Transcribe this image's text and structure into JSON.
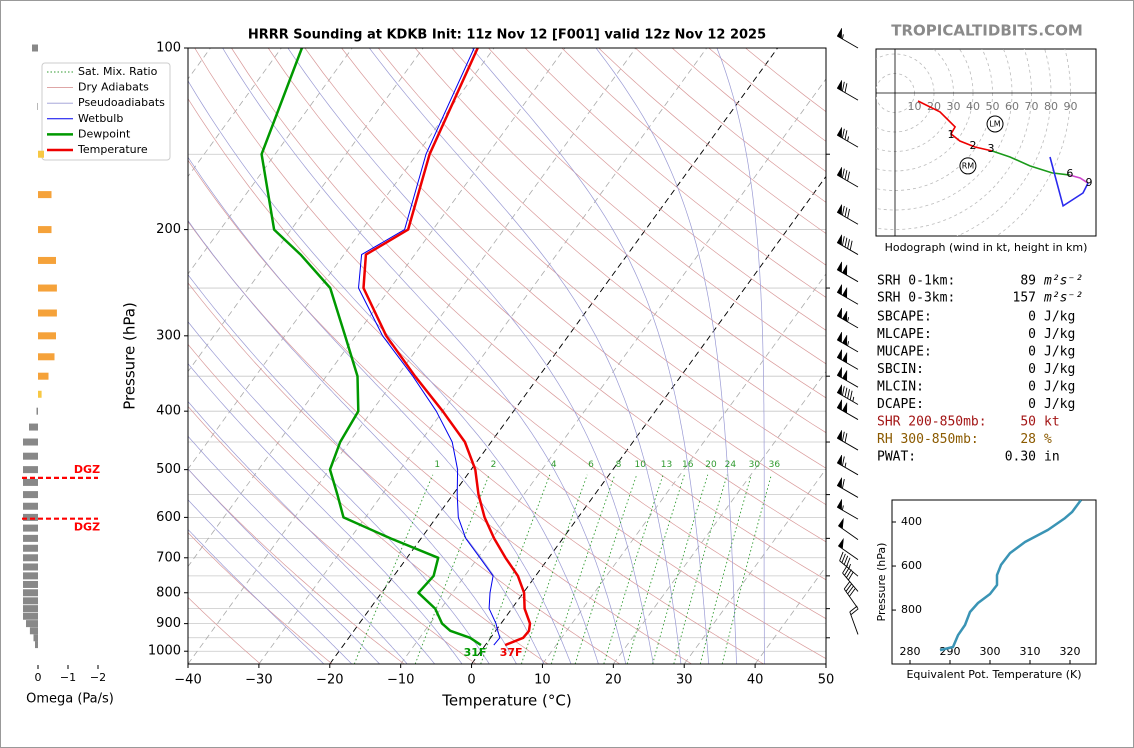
{
  "title": "HRRR Sounding at KDKB Init: 11z Nov 12 [F001] valid 12z Nov 12 2025",
  "watermark": "TROPICALTIDBITS.COM",
  "stats": [
    {
      "label": "SRH 0-1km:",
      "value": 89,
      "unit": "m²s⁻²",
      "color": "#000000"
    },
    {
      "label": "SRH 0-3km:",
      "value": 157,
      "unit": "m²s⁻²",
      "color": "#000000"
    },
    {
      "label": "SBCAPE:",
      "value": 0,
      "unit": "J/kg",
      "color": "#000000"
    },
    {
      "label": "MLCAPE:",
      "value": 0,
      "unit": "J/kg",
      "color": "#000000"
    },
    {
      "label": "MUCAPE:",
      "value": 0,
      "unit": "J/kg",
      "color": "#000000"
    },
    {
      "label": "SBCIN:",
      "value": 0,
      "unit": "J/kg",
      "color": "#000000"
    },
    {
      "label": "MLCIN:",
      "value": 0,
      "unit": "J/kg",
      "color": "#000000"
    },
    {
      "label": "DCAPE:",
      "value": 0,
      "unit": "J/kg",
      "color": "#000000"
    },
    {
      "label": "SHR 200-850mb:",
      "value": 50,
      "unit": "kt",
      "color": "#a31515"
    },
    {
      "label": "RH 300-850mb:",
      "value": 28,
      "unit": "%",
      "color": "#8b5a00"
    },
    {
      "label": "PWAT:",
      "value": 0.3,
      "value_label": "0.30",
      "unit": "in",
      "color": "#000000"
    }
  ],
  "chart_data": [
    {
      "type": "skewt",
      "xlabel": "Temperature (°C)",
      "ylabel": "Pressure (hPa)",
      "xlim": [
        -40,
        50
      ],
      "ylim": [
        1050,
        100
      ],
      "log_y": true,
      "grid": true,
      "legend": "upper left",
      "xticks": [
        {
          "value": -40,
          "label": "−40"
        },
        {
          "value": -30,
          "label": "−30"
        },
        {
          "value": -20,
          "label": "−20"
        },
        {
          "value": -10,
          "label": "−10"
        },
        0,
        10,
        20,
        30,
        40,
        50
      ],
      "yticks": [
        100,
        200,
        300,
        400,
        500,
        600,
        700,
        800,
        900,
        1000
      ],
      "yminor_ticks": [
        150,
        250,
        350,
        450,
        550,
        650,
        750,
        850,
        950
      ],
      "highlight_isotherms": [
        -20,
        0
      ],
      "pressure": [
        977,
        950,
        925,
        900,
        850,
        800,
        750,
        700,
        650,
        600,
        550,
        500,
        450,
        400,
        350,
        300,
        250,
        220,
        200,
        150,
        100
      ],
      "reference_lines": [
        {
          "name": "Sat. Mix. Ratio",
          "color": "#2f9a2f",
          "style": "dotted"
        },
        {
          "name": "Dry Adiabats",
          "color": "#d99a9a",
          "style": "solid"
        },
        {
          "name": "Pseudoadiabats",
          "color": "#9a9ad4",
          "style": "solid"
        }
      ],
      "series": [
        {
          "name": "Wetbulb",
          "color": "#0000ee",
          "width": 1,
          "values": [
            1.2,
            1.3,
            0.3,
            -0.7,
            -3.2,
            -4.7,
            -6.0,
            -9.7,
            -13.7,
            -16.9,
            -19.4,
            -21.9,
            -25.5,
            -30.9,
            -37.8,
            -46.2,
            -54.5,
            -57.5,
            -54.0,
            -58.7,
            -62.8
          ]
        },
        {
          "name": "Dewpoint",
          "color": "#009900",
          "width": 2.5,
          "values": [
            -0.6,
            -2.9,
            -6.4,
            -8.3,
            -10.8,
            -14.8,
            -14.4,
            -15.6,
            -24.3,
            -33.1,
            -36.3,
            -39.9,
            -41.3,
            -41.9,
            -45.6,
            -51.5,
            -58.5,
            -66.1,
            -72.4,
            -81.9,
            -87.1
          ]
        },
        {
          "name": "Temperature",
          "color": "#ee0000",
          "width": 2.5,
          "values": [
            2.8,
            4.6,
            4.7,
            4.1,
            1.8,
            0.1,
            -2.5,
            -6.1,
            -9.7,
            -13.2,
            -16.4,
            -19.4,
            -23.7,
            -30.0,
            -37.5,
            -45.7,
            -53.8,
            -56.9,
            -53.5,
            -58.2,
            -62.3
          ]
        }
      ],
      "mixing_ratio_labels": [
        1,
        2,
        4,
        6,
        8,
        10,
        13,
        16,
        20,
        24,
        30,
        36
      ],
      "surface_labels": {
        "dewpoint": "31F",
        "temperature": "37F"
      },
      "winds": {
        "pressure": [
          100,
          122,
          146,
          170,
          196,
          220,
          244,
          266,
          291,
          319,
          341,
          365,
          390,
          413,
          464,
          510,
          556,
          604,
          653,
          705,
          751,
          796,
          850,
          938
        ],
        "direction": [
          300,
          300,
          300,
          300,
          300,
          300,
          300,
          300,
          300,
          300,
          300,
          300,
          300,
          300,
          300,
          300,
          300,
          300,
          305,
          305,
          310,
          320,
          325,
          340
        ],
        "speed": [
          55,
          70,
          75,
          80,
          80,
          90,
          100,
          100,
          105,
          105,
          100,
          100,
          95,
          100,
          70,
          65,
          60,
          55,
          50,
          50,
          45,
          40,
          40,
          20
        ]
      }
    },
    {
      "type": "bar",
      "orientation": "horizontal",
      "xlabel": "Omega (Pa/s)",
      "xlim": [
        0.6,
        -2.2
      ],
      "ylim": [
        1050,
        100
      ],
      "log_y": true,
      "xticks": [
        0,
        {
          "value": -1,
          "label": "−1"
        },
        {
          "value": -2,
          "label": "−2"
        }
      ],
      "pressure": [
        100,
        125,
        150,
        175,
        200,
        225,
        250,
        275,
        300,
        325,
        350,
        375,
        400,
        425,
        450,
        475,
        500,
        525,
        550,
        575,
        600,
        625,
        650,
        675,
        700,
        725,
        750,
        775,
        800,
        825,
        850,
        875,
        900,
        925,
        950,
        975
      ],
      "values": [
        0.2,
        0.02,
        -0.2,
        -0.45,
        -0.45,
        -0.6,
        -0.63,
        -0.63,
        -0.6,
        -0.55,
        -0.35,
        -0.12,
        0.05,
        0.3,
        0.5,
        0.5,
        0.5,
        0.5,
        0.5,
        0.5,
        0.5,
        0.5,
        0.5,
        0.5,
        0.5,
        0.5,
        0.5,
        0.5,
        0.5,
        0.5,
        0.5,
        0.5,
        0.4,
        0.27,
        0.15,
        0.1
      ],
      "colors": [
        "#888888",
        "#888888",
        "#f7c844",
        "#f5a23a",
        "#f5a23a",
        "#f5a23a",
        "#f5a23a",
        "#f5a23a",
        "#f5a23a",
        "#f5a23a",
        "#f5a23a",
        "#f7c844",
        "#888888",
        "#888888",
        "#888888",
        "#888888",
        "#888888",
        "#888888",
        "#888888",
        "#888888",
        "#888888",
        "#888888",
        "#888888",
        "#888888",
        "#888888",
        "#888888",
        "#888888",
        "#888888",
        "#888888",
        "#888888",
        "#888888",
        "#888888",
        "#888888",
        "#888888",
        "#888888",
        "#888888"
      ],
      "dgz": {
        "pressure": [
          516,
          603
        ],
        "labels": [
          "DGZ",
          "DGZ"
        ],
        "color": "#ff0000"
      }
    },
    {
      "type": "hodograph",
      "caption": "Hodograph (wind in kt, height in km)",
      "rings": [
        10,
        20,
        30,
        40,
        50,
        60,
        70,
        80,
        90
      ],
      "segments": [
        {
          "color": "#ee0000",
          "u": [
            11.8,
            23.1,
            30.8,
            28.7,
            33.3,
            41.0,
            49.7
          ],
          "v": [
            -4.1,
            -9.7,
            -17.4,
            -21.0,
            -24.6,
            -27.7,
            -29.7
          ]
        },
        {
          "color": "#1a9a1a",
          "u": [
            49.7,
            59.0,
            69.2,
            80.5,
            89.7
          ],
          "v": [
            -29.7,
            -32.8,
            -37.4,
            -41.0,
            -42.1
          ]
        },
        {
          "color": "#cc44cc",
          "u": [
            89.7,
            94.9,
            99.0
          ],
          "v": [
            -42.1,
            -43.6,
            -46.2
          ]
        },
        {
          "color": "#2a2aee",
          "u": [
            99.0,
            96.4,
            86.2,
            79.5
          ],
          "v": [
            -46.2,
            -51.3,
            -57.9,
            -32.8
          ]
        }
      ],
      "height_labels": [
        {
          "height": 1,
          "u": 28.7,
          "v": -21.5
        },
        {
          "height": 2,
          "u": 40.0,
          "v": -27.2
        },
        {
          "height": 3,
          "u": 49.2,
          "v": -28.7
        },
        {
          "height": 6,
          "u": 89.7,
          "v": -41.5
        },
        {
          "height": 9,
          "u": 99.5,
          "v": -46.2
        }
      ],
      "storm_motion": [
        {
          "label": "LM",
          "u": 51.3,
          "v": -15.9
        },
        {
          "label": "RM",
          "u": 37.4,
          "v": -37.4
        }
      ]
    },
    {
      "type": "line",
      "xlabel": "Equivalent Pot. Temperature (K)",
      "ylabel": "Pressure (hPa)",
      "xlim": [
        275.5,
        326.5
      ],
      "ylim": [
        1045,
        300
      ],
      "xticks": [
        280,
        290,
        300,
        310,
        320
      ],
      "yticks": [
        400,
        600,
        800
      ],
      "color": "#3a94b5",
      "x": [
        287.5,
        290.75,
        292,
        293.75,
        295,
        297,
        300,
        301.75,
        301.75,
        302.75,
        305,
        308.75,
        314.5,
        318.75,
        320.5,
        322.75
      ],
      "values": [
        982,
        968,
        914,
        868,
        809,
        768,
        727,
        686,
        641,
        595,
        541,
        491,
        436,
        382,
        355,
        300
      ]
    }
  ]
}
